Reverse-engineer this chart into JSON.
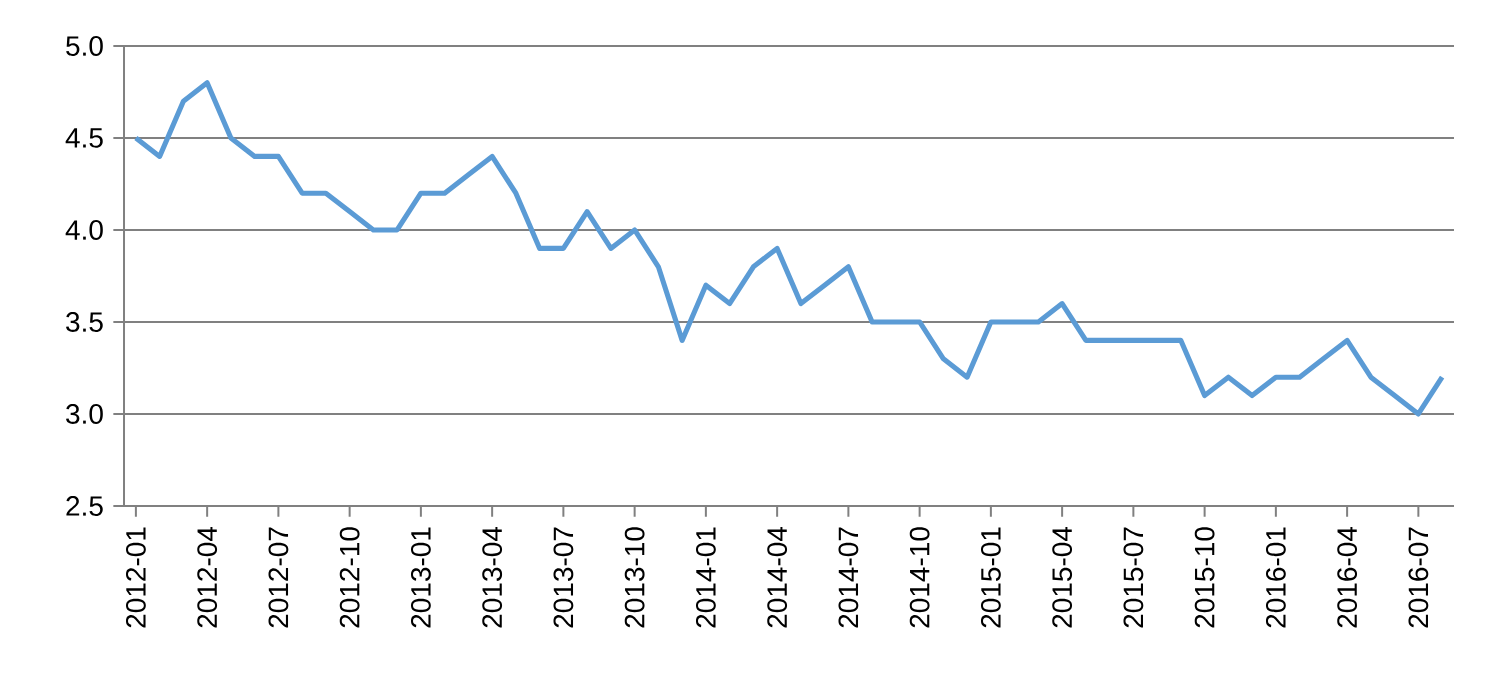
{
  "chart_data": {
    "type": "line",
    "categories": [
      "2012-01",
      null,
      null,
      "2012-04",
      null,
      null,
      "2012-07",
      null,
      null,
      "2012-10",
      null,
      null,
      "2013-01",
      null,
      null,
      "2013-04",
      null,
      null,
      "2013-07",
      null,
      null,
      "2013-10",
      null,
      null,
      "2014-01",
      null,
      null,
      "2014-04",
      null,
      null,
      "2014-07",
      null,
      null,
      "2014-10",
      null,
      null,
      "2015-01",
      null,
      null,
      "2015-04",
      null,
      null,
      "2015-07",
      null,
      null,
      "2015-10",
      null,
      null,
      "2016-01",
      null,
      null,
      "2016-04",
      null,
      null,
      "2016-07",
      null
    ],
    "series": [
      {
        "color": "#5b9bd5",
        "values": [
          4.5,
          4.4,
          4.7,
          4.8,
          4.5,
          4.4,
          4.4,
          4.2,
          4.2,
          4.1,
          4.0,
          4.0,
          4.2,
          4.2,
          4.3,
          4.4,
          4.2,
          3.9,
          3.9,
          4.1,
          3.9,
          4.0,
          3.8,
          3.4,
          3.7,
          3.6,
          3.8,
          3.9,
          3.6,
          3.7,
          3.8,
          3.5,
          3.5,
          3.5,
          3.3,
          3.2,
          3.5,
          3.5,
          3.5,
          3.6,
          3.4,
          3.4,
          3.4,
          3.4,
          3.4,
          3.1,
          3.2,
          3.1,
          3.2,
          3.2,
          3.3,
          3.4,
          3.2,
          3.1,
          3.0,
          3.2
        ]
      }
    ],
    "ylim": [
      2.5,
      5.0
    ],
    "yticks": [
      2.5,
      {
        "value": 3,
        "label": "3.0"
      },
      3.5,
      {
        "value": 4,
        "label": "4.0"
      },
      4.5,
      {
        "value": 5,
        "label": "5.0"
      }
    ],
    "grid": "y",
    "marker": "none",
    "line_style": "solid"
  }
}
